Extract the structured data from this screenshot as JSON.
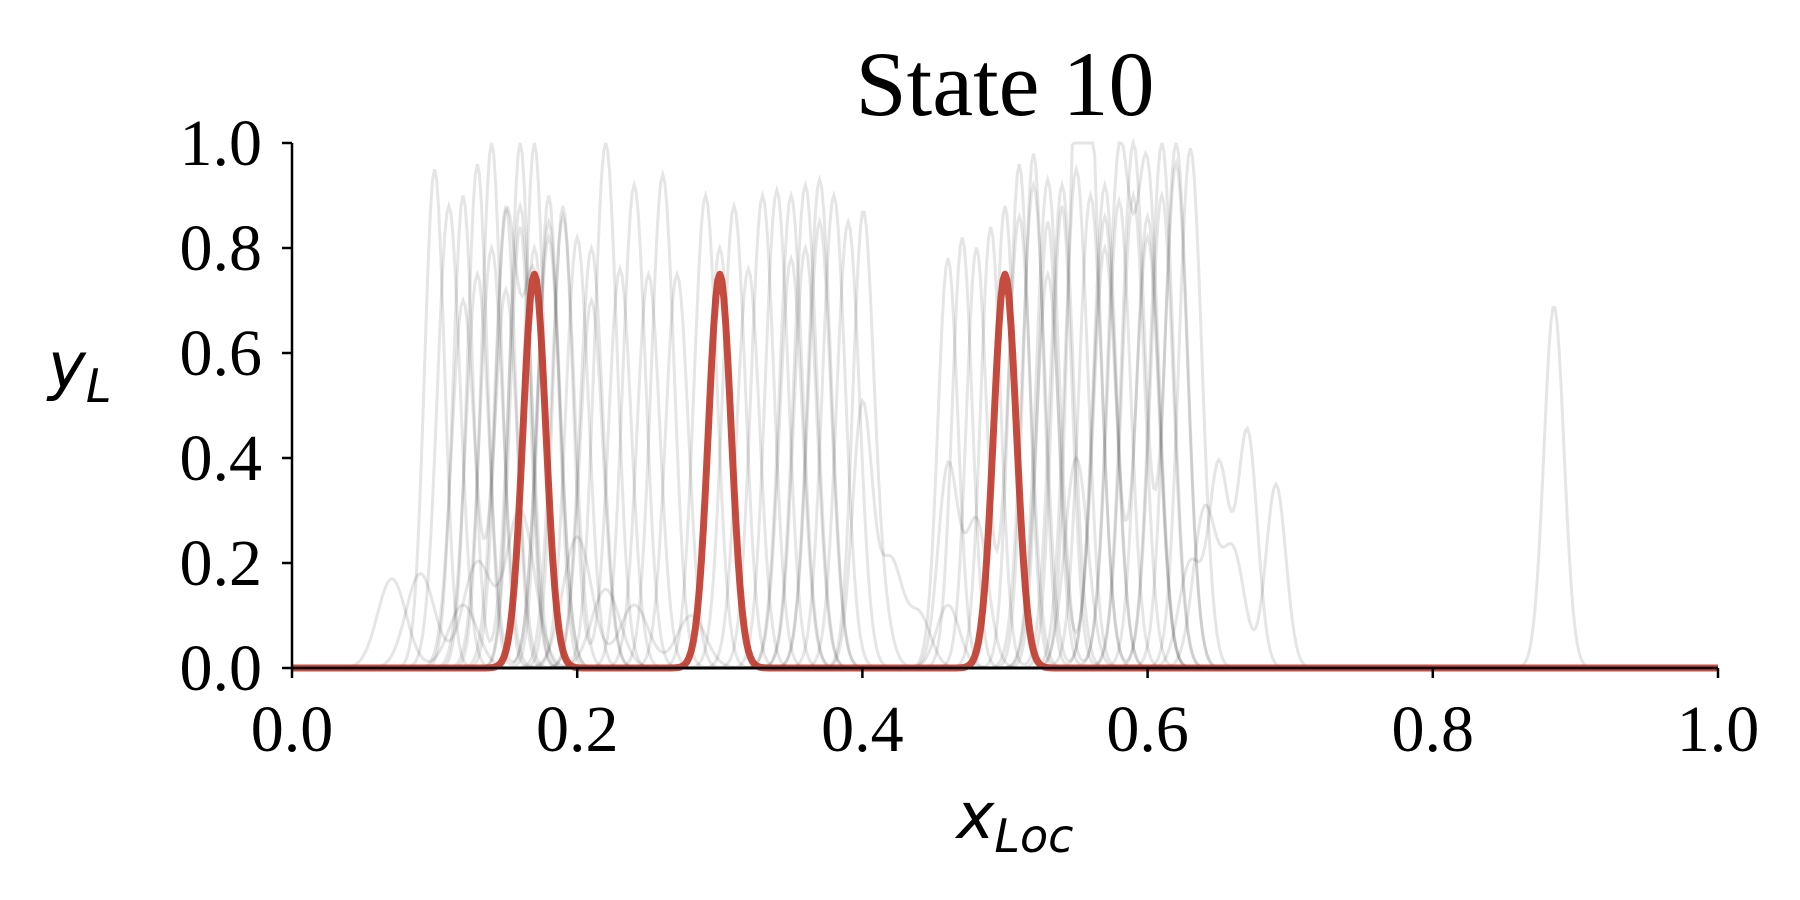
{
  "chart_data": {
    "type": "line",
    "title": "State 10",
    "xlabel": "x",
    "xlabel_subscript": "Loc",
    "ylabel": "y",
    "ylabel_subscript": "L",
    "xlim": [
      0.0,
      1.0
    ],
    "ylim": [
      0.0,
      1.0
    ],
    "xticks": [
      "0.0",
      "0.2",
      "0.4",
      "0.6",
      "0.8",
      "1.0"
    ],
    "yticks": [
      "0.0",
      "0.2",
      "0.4",
      "0.6",
      "0.8",
      "1.0"
    ],
    "grid": false,
    "legend": "none",
    "colors": {
      "highlight": "#c0392b",
      "background_curves": "#000000",
      "axis": "#000000"
    },
    "highlight_series": {
      "peaks": [
        {
          "center": 0.17,
          "height": 0.75,
          "width": 0.008
        },
        {
          "center": 0.3,
          "height": 0.75,
          "width": 0.008
        },
        {
          "center": 0.5,
          "height": 0.75,
          "width": 0.008
        }
      ]
    },
    "background_series": [
      {
        "peaks": [
          [
            0.1,
            0.95,
            0.007
          ],
          [
            0.17,
            0.8,
            0.008
          ],
          [
            0.29,
            0.9,
            0.008
          ]
        ]
      },
      {
        "peaks": [
          [
            0.12,
            0.9,
            0.007
          ],
          [
            0.16,
            0.88,
            0.008
          ],
          [
            0.3,
            0.8,
            0.008
          ]
        ]
      },
      {
        "peaks": [
          [
            0.13,
            0.96,
            0.007
          ],
          [
            0.18,
            0.85,
            0.008
          ],
          [
            0.31,
            0.88,
            0.008
          ]
        ]
      },
      {
        "peaks": [
          [
            0.14,
            1.0,
            0.007
          ],
          [
            0.2,
            0.82,
            0.008
          ],
          [
            0.33,
            0.9,
            0.008
          ]
        ]
      },
      {
        "peaks": [
          [
            0.15,
            0.88,
            0.007
          ],
          [
            0.21,
            0.8,
            0.008
          ],
          [
            0.34,
            0.91,
            0.008
          ]
        ]
      },
      {
        "peaks": [
          [
            0.16,
            1.0,
            0.007
          ],
          [
            0.22,
            1.0,
            0.008
          ],
          [
            0.35,
            0.9,
            0.008
          ]
        ]
      },
      {
        "peaks": [
          [
            0.16,
            0.84,
            0.007
          ],
          [
            0.24,
            0.92,
            0.008
          ],
          [
            0.36,
            0.92,
            0.008
          ]
        ]
      },
      {
        "peaks": [
          [
            0.17,
            1.0,
            0.007
          ],
          [
            0.26,
            0.94,
            0.008
          ],
          [
            0.37,
            0.93,
            0.008
          ]
        ]
      },
      {
        "peaks": [
          [
            0.18,
            0.9,
            0.007
          ],
          [
            0.25,
            0.75,
            0.008
          ],
          [
            0.38,
            0.9,
            0.008
          ]
        ]
      },
      {
        "peaks": [
          [
            0.19,
            0.88,
            0.007
          ],
          [
            0.23,
            0.76,
            0.008
          ],
          [
            0.37,
            0.85,
            0.008
          ]
        ]
      },
      {
        "peaks": [
          [
            0.12,
            0.7,
            0.008
          ],
          [
            0.15,
            0.72,
            0.008
          ],
          [
            0.27,
            0.75,
            0.008
          ]
        ]
      },
      {
        "peaks": [
          [
            0.11,
            0.88,
            0.008
          ],
          [
            0.19,
            0.86,
            0.008
          ],
          [
            0.39,
            0.85,
            0.008
          ]
        ]
      },
      {
        "peaks": [
          [
            0.14,
            0.8,
            0.008
          ],
          [
            0.21,
            0.7,
            0.008
          ],
          [
            0.35,
            0.78,
            0.008
          ]
        ]
      },
      {
        "peaks": [
          [
            0.13,
            0.75,
            0.008
          ],
          [
            0.18,
            0.82,
            0.008
          ],
          [
            0.32,
            0.76,
            0.008
          ]
        ]
      },
      {
        "peaks": [
          [
            0.15,
            0.84,
            0.008
          ],
          [
            0.17,
            0.72,
            0.008
          ],
          [
            0.36,
            0.8,
            0.008
          ]
        ]
      },
      {
        "peaks": [
          [
            0.09,
            0.18,
            0.01
          ],
          [
            0.13,
            0.2,
            0.01
          ],
          [
            0.16,
            0.3,
            0.01
          ]
        ]
      },
      {
        "peaks": [
          [
            0.07,
            0.17,
            0.01
          ],
          [
            0.12,
            0.12,
            0.01
          ],
          [
            0.22,
            0.15,
            0.01
          ]
        ]
      },
      {
        "peaks": [
          [
            0.2,
            0.25,
            0.01
          ],
          [
            0.24,
            0.12,
            0.01
          ],
          [
            0.28,
            0.1,
            0.01
          ]
        ]
      },
      {
        "peaks": [
          [
            0.4,
            0.5,
            0.007
          ],
          [
            0.42,
            0.2,
            0.008
          ],
          [
            0.44,
            0.1,
            0.008
          ]
        ]
      },
      {
        "peaks": [
          [
            0.4,
            0.8,
            0.007
          ],
          [
            0.41,
            0.15,
            0.008
          ],
          [
            0.46,
            0.12,
            0.008
          ]
        ]
      },
      {
        "peaks": [
          [
            0.46,
            0.78,
            0.007
          ],
          [
            0.52,
            0.92,
            0.008
          ],
          [
            0.57,
            0.86,
            0.008
          ]
        ]
      },
      {
        "peaks": [
          [
            0.47,
            0.82,
            0.007
          ],
          [
            0.53,
            0.93,
            0.008
          ],
          [
            0.58,
            0.89,
            0.008
          ]
        ]
      },
      {
        "peaks": [
          [
            0.48,
            0.8,
            0.007
          ],
          [
            0.51,
            0.86,
            0.008
          ],
          [
            0.59,
            0.9,
            0.008
          ]
        ]
      },
      {
        "peaks": [
          [
            0.49,
            0.84,
            0.007
          ],
          [
            0.54,
            0.92,
            0.008
          ],
          [
            0.6,
            0.86,
            0.008
          ]
        ]
      },
      {
        "peaks": [
          [
            0.5,
            0.88,
            0.007
          ],
          [
            0.55,
            0.95,
            0.008
          ],
          [
            0.61,
            1.0,
            0.008
          ]
        ]
      },
      {
        "peaks": [
          [
            0.51,
            0.96,
            0.007
          ],
          [
            0.56,
            0.9,
            0.008
          ],
          [
            0.62,
            1.0,
            0.008
          ]
        ]
      },
      {
        "peaks": [
          [
            0.52,
            0.98,
            0.007
          ],
          [
            0.57,
            0.92,
            0.008
          ],
          [
            0.63,
            0.99,
            0.008
          ]
        ]
      },
      {
        "peaks": [
          [
            0.53,
            0.85,
            0.007
          ],
          [
            0.58,
            0.96,
            0.008
          ],
          [
            0.6,
            0.93,
            0.008
          ]
        ]
      },
      {
        "peaks": [
          [
            0.54,
            0.88,
            0.007
          ],
          [
            0.59,
            1.0,
            0.008
          ],
          [
            0.62,
            0.96,
            0.008
          ]
        ]
      },
      {
        "peaks": [
          [
            0.55,
            0.82,
            0.007
          ],
          [
            0.56,
            0.88,
            0.008
          ],
          [
            0.61,
            0.9,
            0.008
          ]
        ]
      },
      {
        "peaks": [
          [
            0.53,
            0.75,
            0.008
          ],
          [
            0.57,
            0.8,
            0.008
          ],
          [
            0.6,
            0.82,
            0.008
          ]
        ]
      },
      {
        "peaks": [
          [
            0.46,
            0.38,
            0.007
          ],
          [
            0.48,
            0.28,
            0.008
          ],
          [
            0.55,
            0.4,
            0.008
          ]
        ]
      },
      {
        "peaks": [
          [
            0.63,
            0.2,
            0.008
          ],
          [
            0.65,
            0.38,
            0.007
          ],
          [
            0.67,
            0.45,
            0.007
          ]
        ]
      },
      {
        "peaks": [
          [
            0.69,
            0.35,
            0.007
          ],
          [
            0.66,
            0.22,
            0.008
          ],
          [
            0.64,
            0.3,
            0.008
          ]
        ]
      },
      {
        "peaks": [
          [
            0.885,
            0.69,
            0.007
          ]
        ]
      }
    ]
  }
}
